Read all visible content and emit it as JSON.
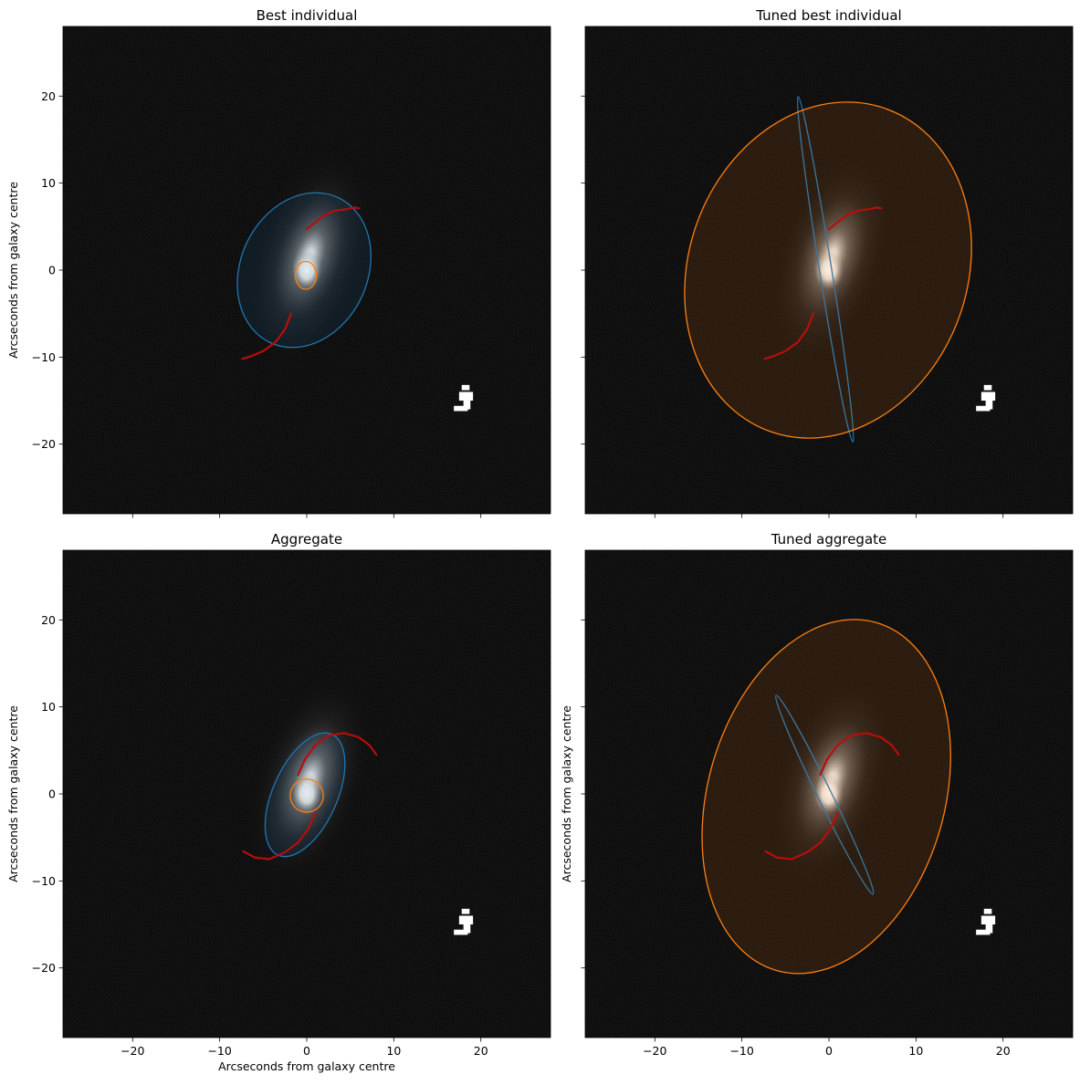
{
  "colors": {
    "background": "#050505",
    "disk": "#1f77b4",
    "bulge": "#ff7f0e",
    "arm": "#b80d0d",
    "star": "#ffffff"
  },
  "chart_data": [
    {
      "type": "image",
      "title": "Best individual",
      "xlabel": "",
      "ylabel": "Arcseconds from galaxy centre",
      "xlim": [
        -28,
        28
      ],
      "ylim": [
        -28,
        28
      ],
      "xticks": [
        -20,
        -10,
        0,
        10,
        20
      ],
      "yticks": [
        -20,
        -10,
        0,
        10,
        20
      ],
      "show_xticklabels": false,
      "show_yticklabels": true,
      "disk": {
        "cx": -0.3,
        "cy": 0.0,
        "rx": 7.3,
        "ry": 9.2,
        "angle": 25,
        "filled": true
      },
      "bulge": {
        "cx": -0.1,
        "cy": -0.6,
        "rx": 1.2,
        "ry": 1.6,
        "angle": 0,
        "filled": false
      },
      "arms": [
        [
          [
            0,
            4.7
          ],
          [
            1.0,
            5.5
          ],
          [
            2.0,
            6.3
          ],
          [
            3.2,
            6.8
          ],
          [
            4.5,
            7.0
          ],
          [
            5.5,
            7.2
          ],
          [
            6.0,
            7.1
          ]
        ],
        [
          [
            -1.8,
            -5.0
          ],
          [
            -2.5,
            -6.8
          ],
          [
            -3.6,
            -8.3
          ],
          [
            -5.0,
            -9.3
          ],
          [
            -6.4,
            -9.9
          ],
          [
            -7.4,
            -10.2
          ]
        ]
      ]
    },
    {
      "type": "image",
      "title": "Tuned best individual",
      "xlabel": "",
      "ylabel": "",
      "xlim": [
        -28,
        28
      ],
      "ylim": [
        -28,
        28
      ],
      "xticks": [
        -20,
        -10,
        0,
        10,
        20
      ],
      "yticks": [
        -20,
        -10,
        0,
        10,
        20
      ],
      "show_xticklabels": false,
      "show_yticklabels": false,
      "disk": {
        "cx": -0.4,
        "cy": 0.1,
        "rx": 0.7,
        "ry": 20.1,
        "angle": -9,
        "filled": false
      },
      "bulge": {
        "cx": -0.1,
        "cy": 0.0,
        "rx": 16.0,
        "ry": 19.7,
        "angle": 20,
        "filled": true
      },
      "arms": [
        [
          [
            0,
            4.7
          ],
          [
            1.0,
            5.5
          ],
          [
            2.0,
            6.3
          ],
          [
            3.2,
            6.8
          ],
          [
            4.5,
            7.0
          ],
          [
            5.5,
            7.2
          ],
          [
            6.0,
            7.1
          ]
        ],
        [
          [
            -1.8,
            -5.0
          ],
          [
            -2.5,
            -6.8
          ],
          [
            -3.6,
            -8.3
          ],
          [
            -5.0,
            -9.3
          ],
          [
            -6.4,
            -9.9
          ],
          [
            -7.4,
            -10.2
          ]
        ]
      ]
    },
    {
      "type": "image",
      "title": "Aggregate",
      "xlabel": "Arcseconds from galaxy centre",
      "ylabel": "Arcseconds from galaxy centre",
      "xlim": [
        -28,
        28
      ],
      "ylim": [
        -28,
        28
      ],
      "xticks": [
        -20,
        -10,
        0,
        10,
        20
      ],
      "yticks": [
        -20,
        -10,
        0,
        10,
        20
      ],
      "show_xticklabels": true,
      "show_yticklabels": true,
      "disk": {
        "cx": -0.2,
        "cy": -0.1,
        "rx": 3.7,
        "ry": 7.6,
        "angle": 24,
        "filled": true
      },
      "bulge": {
        "cx": 0,
        "cy": -0.2,
        "rx": 1.9,
        "ry": 1.9,
        "angle": 0,
        "filled": false
      },
      "arms": [
        [
          [
            -1.0,
            2.2
          ],
          [
            -0.2,
            4.0
          ],
          [
            1.0,
            5.6
          ],
          [
            2.5,
            6.7
          ],
          [
            4.3,
            7.0
          ],
          [
            6.0,
            6.5
          ],
          [
            7.2,
            5.6
          ],
          [
            8.0,
            4.5
          ]
        ],
        [
          [
            1.0,
            -2.2
          ],
          [
            0.2,
            -4.0
          ],
          [
            -1.0,
            -5.6
          ],
          [
            -2.5,
            -6.7
          ],
          [
            -4.3,
            -7.5
          ],
          [
            -6.0,
            -7.3
          ],
          [
            -7.3,
            -6.6
          ]
        ]
      ]
    },
    {
      "type": "image",
      "title": "Tuned aggregate",
      "xlabel": "",
      "ylabel": "Arcseconds from galaxy centre",
      "xlim": [
        -28,
        28
      ],
      "ylim": [
        -28,
        28
      ],
      "xticks": [
        -20,
        -10,
        0,
        10,
        20
      ],
      "yticks": [
        -20,
        -10,
        0,
        10,
        20
      ],
      "show_xticklabels": true,
      "show_yticklabels": false,
      "disk": {
        "cx": -0.5,
        "cy": -0.1,
        "rx": 0.8,
        "ry": 12.7,
        "angle": -26,
        "filled": false
      },
      "bulge": {
        "cx": -0.3,
        "cy": -0.3,
        "rx": 13.6,
        "ry": 20.8,
        "angle": 16,
        "filled": true
      },
      "arms": [
        [
          [
            -1.0,
            2.2
          ],
          [
            -0.2,
            4.0
          ],
          [
            1.0,
            5.6
          ],
          [
            2.5,
            6.7
          ],
          [
            4.3,
            7.0
          ],
          [
            6.0,
            6.5
          ],
          [
            7.2,
            5.6
          ],
          [
            8.0,
            4.5
          ]
        ],
        [
          [
            1.0,
            -2.2
          ],
          [
            0.2,
            -4.0
          ],
          [
            -1.0,
            -5.6
          ],
          [
            -2.5,
            -6.7
          ],
          [
            -4.3,
            -7.5
          ],
          [
            -6.0,
            -7.3
          ],
          [
            -7.3,
            -6.6
          ]
        ]
      ]
    }
  ]
}
